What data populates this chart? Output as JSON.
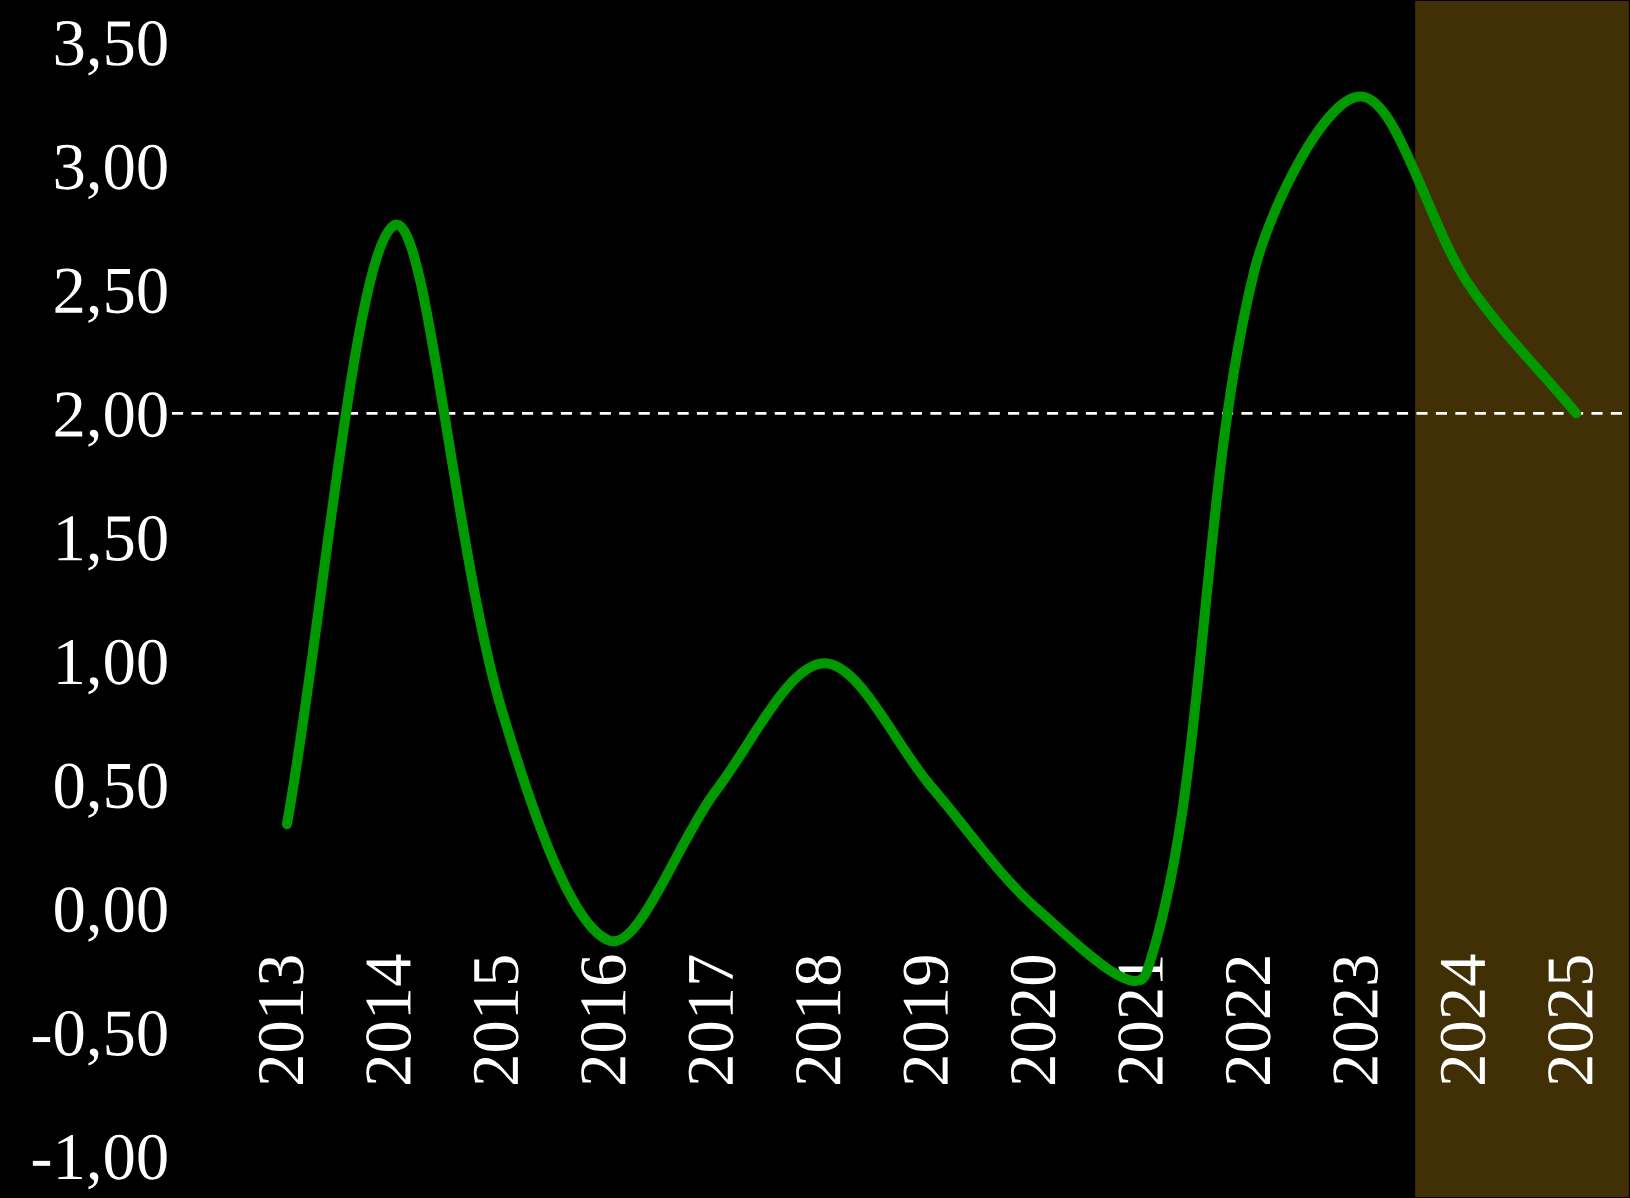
{
  "chart_data": {
    "type": "line",
    "categories": [
      "2013",
      "2014",
      "2015",
      "2016",
      "2017",
      "2018",
      "2019",
      "2020",
      "2021",
      "2022",
      "2023",
      "2024",
      "2025"
    ],
    "series": [
      {
        "color": "#009900",
        "values": [
          0.34,
          2.76,
          0.8,
          -0.13,
          0.48,
          0.99,
          0.49,
          -0.01,
          -0.26,
          2.57,
          3.28,
          2.52,
          2.0
        ]
      }
    ],
    "ylim": [
      -1.17,
      3.67
    ],
    "yticks": [
      {
        "value": -1,
        "label": "-1,00"
      },
      {
        "value": -0.5,
        "label": "-0,50"
      },
      {
        "value": 0,
        "label": "0,00"
      },
      {
        "value": 0.5,
        "label": "0,50"
      },
      {
        "value": 1,
        "label": "1,00"
      },
      {
        "value": 1.5,
        "label": "1,50"
      },
      {
        "value": 2,
        "label": "2,00"
      },
      {
        "value": 2.5,
        "label": "2,50"
      },
      {
        "value": 3,
        "label": "3,00"
      },
      {
        "value": 3.5,
        "label": "3,50"
      }
    ],
    "ref_lines": [
      {
        "axis": "y",
        "value": 2,
        "color": "#ffffff",
        "line_style": "dashed"
      }
    ],
    "bands": [
      {
        "axis": "x",
        "from": "2024",
        "to": "2025",
        "color": "#412f05"
      }
    ],
    "grid": false,
    "legend": false,
    "marker": "none",
    "line_style": "solid"
  }
}
